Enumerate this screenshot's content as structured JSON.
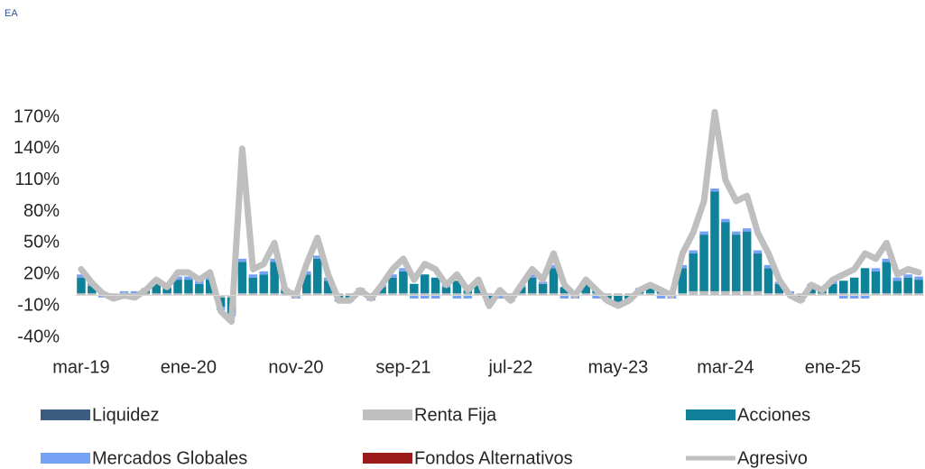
{
  "chart_data": {
    "type": "stacked-bar-line",
    "subtitle": "EA",
    "categories": [
      "mar-19",
      null,
      null,
      null,
      null,
      null,
      null,
      null,
      null,
      null,
      "ene-20",
      null,
      null,
      null,
      null,
      null,
      null,
      null,
      null,
      null,
      "nov-20",
      null,
      null,
      null,
      null,
      null,
      null,
      null,
      null,
      null,
      "sep-21",
      null,
      null,
      null,
      null,
      null,
      null,
      null,
      null,
      null,
      "jul-22",
      null,
      null,
      null,
      null,
      null,
      null,
      null,
      null,
      null,
      "may-23",
      null,
      null,
      null,
      null,
      null,
      null,
      null,
      null,
      null,
      "mar-24",
      null,
      null,
      null,
      null,
      null,
      null,
      null,
      null,
      null,
      "ene-25",
      null,
      null,
      null,
      null,
      null,
      null,
      null,
      null
    ],
    "ylim": [
      -40,
      190
    ],
    "yticks": [
      {
        "value": -40,
        "label": "-40%"
      },
      {
        "value": -10,
        "label": "-10%"
      },
      {
        "value": 20,
        "label": "20%"
      },
      {
        "value": 50,
        "label": "50%"
      },
      {
        "value": 80,
        "label": "80%"
      },
      {
        "value": 110,
        "label": "110%"
      },
      {
        "value": 140,
        "label": "140%"
      },
      {
        "value": 170,
        "label": "170%"
      }
    ],
    "series": [
      {
        "name": "Liquidez",
        "color": "#3b5b7f",
        "kind": "bar",
        "values": [
          0,
          0,
          0,
          0,
          0,
          0,
          0,
          0,
          0,
          0,
          0,
          0,
          0,
          0,
          0,
          0,
          0,
          0,
          0,
          0,
          0,
          0,
          0,
          0,
          0,
          0,
          0,
          0,
          0,
          0,
          0,
          0,
          0,
          0,
          0,
          0,
          0,
          0,
          0,
          0,
          0,
          0,
          0,
          0,
          0,
          0,
          0,
          0,
          0,
          0,
          0,
          0,
          0,
          0,
          0,
          0,
          0,
          0,
          0,
          0,
          0,
          0,
          0,
          0,
          0,
          0,
          0,
          0,
          0,
          0,
          0,
          0,
          0,
          0,
          0,
          0,
          0,
          0,
          0
        ]
      },
      {
        "name": "Renta Fija",
        "color": "#bfbfbf",
        "kind": "bar",
        "values": [
          2,
          2,
          2,
          2,
          2,
          2,
          2,
          2,
          2,
          2,
          2,
          2,
          2,
          -2,
          -2,
          2,
          2,
          2,
          2,
          2,
          2,
          2,
          2,
          2,
          2,
          2,
          2,
          2,
          2,
          2,
          2,
          2,
          2,
          2,
          2,
          2,
          2,
          2,
          2,
          2,
          2,
          2,
          2,
          2,
          2,
          2,
          2,
          2,
          2,
          2,
          2,
          2,
          2,
          2,
          2,
          2,
          2,
          4,
          4,
          4,
          4,
          4,
          4,
          4,
          2,
          2,
          2,
          2,
          2,
          2,
          2,
          2,
          2,
          2,
          2,
          2,
          2,
          2,
          2
        ]
      },
      {
        "name": "Acciones",
        "color": "#0f8299",
        "kind": "bar",
        "values": [
          15,
          7,
          1,
          -2,
          0,
          -1,
          3,
          9,
          5,
          13,
          13,
          9,
          13,
          -9,
          -15,
          30,
          15,
          18,
          30,
          3,
          0,
          18,
          33,
          12,
          -3,
          -3,
          3,
          -2,
          6,
          15,
          21,
          9,
          18,
          15,
          6,
          12,
          3,
          9,
          -6,
          3,
          -3,
          6,
          15,
          9,
          24,
          6,
          0,
          9,
          3,
          -3,
          -6,
          -3,
          3,
          6,
          3,
          0,
          24,
          36,
          54,
          95,
          66,
          54,
          57,
          36,
          24,
          9,
          0,
          -3,
          6,
          3,
          9,
          12,
          15,
          24,
          21,
          30,
          12,
          15,
          13
        ]
      },
      {
        "name": "Mercados Globales",
        "color": "#76a2f5",
        "kind": "bar",
        "values": [
          3,
          3,
          -2,
          -2,
          2,
          2,
          2,
          3,
          3,
          3,
          3,
          3,
          3,
          -3,
          -3,
          3,
          3,
          3,
          3,
          2,
          -3,
          3,
          3,
          3,
          -3,
          -3,
          2,
          -3,
          2,
          3,
          3,
          -3,
          -3,
          -3,
          2,
          -3,
          -3,
          2,
          -3,
          -3,
          -3,
          2,
          3,
          2,
          3,
          -3,
          -3,
          2,
          -3,
          -3,
          -5,
          -3,
          2,
          2,
          -3,
          -3,
          3,
          3,
          3,
          3,
          3,
          3,
          3,
          3,
          3,
          2,
          2,
          -3,
          3,
          3,
          3,
          -3,
          -3,
          -3,
          3,
          3,
          3,
          3,
          3
        ]
      },
      {
        "name": "Fondos Alternativos",
        "color": "#9b1b1b",
        "kind": "bar",
        "values": [
          0,
          0,
          0,
          0,
          0,
          0,
          0,
          0,
          0,
          0,
          0,
          0,
          0,
          0,
          0,
          0,
          0,
          0,
          0,
          0,
          0,
          0,
          0,
          0,
          0,
          0,
          0,
          0,
          0,
          0,
          0,
          0,
          0,
          0,
          0,
          0,
          0,
          0,
          0,
          0,
          0,
          0,
          0,
          0,
          0,
          0,
          0,
          0,
          0,
          0,
          0,
          0,
          0,
          0,
          0,
          0,
          0,
          0,
          0,
          0,
          0,
          0,
          0,
          0,
          0,
          0,
          0,
          0,
          0,
          0,
          0,
          0,
          0,
          0,
          0,
          0,
          0,
          0,
          0
        ]
      },
      {
        "name": "Agresivo",
        "color": "#bfbfbf",
        "kind": "line",
        "values": [
          25,
          12,
          2,
          -3,
          0,
          -2,
          5,
          15,
          8,
          22,
          22,
          15,
          22,
          -15,
          -25,
          140,
          25,
          30,
          50,
          5,
          0,
          30,
          55,
          20,
          -5,
          -5,
          5,
          -3,
          10,
          25,
          35,
          15,
          30,
          25,
          10,
          20,
          5,
          15,
          -10,
          5,
          -5,
          10,
          25,
          15,
          40,
          10,
          0,
          15,
          5,
          -5,
          -10,
          -5,
          5,
          10,
          5,
          0,
          40,
          60,
          90,
          175,
          110,
          90,
          95,
          60,
          40,
          15,
          0,
          -5,
          10,
          5,
          15,
          20,
          25,
          40,
          35,
          50,
          20,
          25,
          22
        ]
      }
    ]
  }
}
